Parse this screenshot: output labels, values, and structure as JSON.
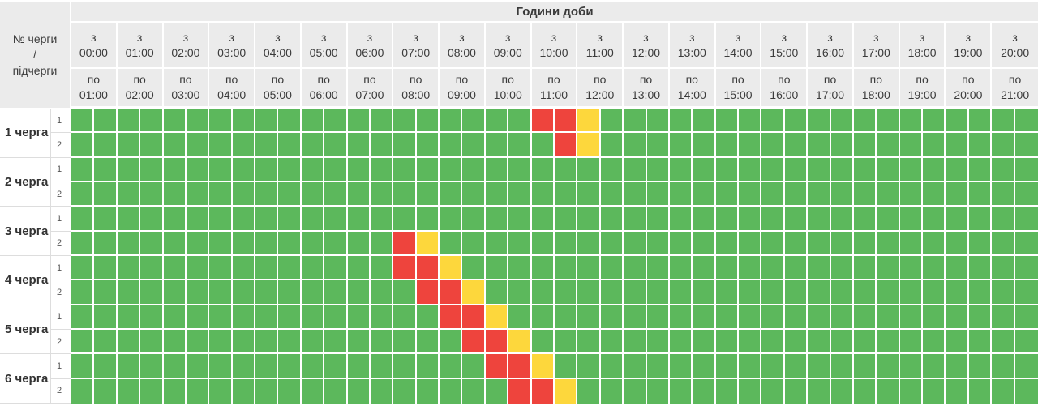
{
  "header": {
    "corner_label": "№ черги\n/\nпідчерги",
    "from_prefix": "з",
    "to_prefix": "по"
  },
  "chart_data": {
    "type": "heatmap",
    "title": "Години доби",
    "row_header": "№ черги / підчерги",
    "cell_minutes": 30,
    "colors": {
      "g": "#5cb85c",
      "r": "#ee443d",
      "y": "#fdd73c"
    },
    "x_slots": [
      {
        "from": "00:00",
        "to": "01:00"
      },
      {
        "from": "01:00",
        "to": "02:00"
      },
      {
        "from": "02:00",
        "to": "03:00"
      },
      {
        "from": "03:00",
        "to": "04:00"
      },
      {
        "from": "04:00",
        "to": "05:00"
      },
      {
        "from": "05:00",
        "to": "06:00"
      },
      {
        "from": "06:00",
        "to": "07:00"
      },
      {
        "from": "07:00",
        "to": "08:00"
      },
      {
        "from": "08:00",
        "to": "09:00"
      },
      {
        "from": "09:00",
        "to": "10:00"
      },
      {
        "from": "10:00",
        "to": "11:00"
      },
      {
        "from": "11:00",
        "to": "12:00"
      },
      {
        "from": "12:00",
        "to": "13:00"
      },
      {
        "from": "13:00",
        "to": "14:00"
      },
      {
        "from": "14:00",
        "to": "15:00"
      },
      {
        "from": "15:00",
        "to": "16:00"
      },
      {
        "from": "16:00",
        "to": "17:00"
      },
      {
        "from": "17:00",
        "to": "18:00"
      },
      {
        "from": "18:00",
        "to": "19:00"
      },
      {
        "from": "19:00",
        "to": "20:00"
      },
      {
        "from": "20:00",
        "to": "21:00"
      }
    ],
    "rows": [
      {
        "queue": "1 черга",
        "subqueue": "1",
        "runs": [
          [
            "g",
            20
          ],
          [
            "r",
            2
          ],
          [
            "y",
            1
          ],
          [
            "g",
            19
          ]
        ]
      },
      {
        "queue": "1 черга",
        "subqueue": "2",
        "runs": [
          [
            "g",
            21
          ],
          [
            "r",
            1
          ],
          [
            "y",
            1
          ],
          [
            "g",
            19
          ]
        ]
      },
      {
        "queue": "2 черга",
        "subqueue": "1",
        "runs": [
          [
            "g",
            42
          ]
        ]
      },
      {
        "queue": "2 черга",
        "subqueue": "2",
        "runs": [
          [
            "g",
            42
          ]
        ]
      },
      {
        "queue": "3 черга",
        "subqueue": "1",
        "runs": [
          [
            "g",
            42
          ]
        ]
      },
      {
        "queue": "3 черга",
        "subqueue": "2",
        "runs": [
          [
            "g",
            14
          ],
          [
            "r",
            1
          ],
          [
            "y",
            1
          ],
          [
            "g",
            26
          ]
        ]
      },
      {
        "queue": "4 черга",
        "subqueue": "1",
        "runs": [
          [
            "g",
            14
          ],
          [
            "r",
            2
          ],
          [
            "y",
            1
          ],
          [
            "g",
            25
          ]
        ]
      },
      {
        "queue": "4 черга",
        "subqueue": "2",
        "runs": [
          [
            "g",
            15
          ],
          [
            "r",
            2
          ],
          [
            "y",
            1
          ],
          [
            "g",
            24
          ]
        ]
      },
      {
        "queue": "5 черга",
        "subqueue": "1",
        "runs": [
          [
            "g",
            16
          ],
          [
            "r",
            2
          ],
          [
            "y",
            1
          ],
          [
            "g",
            23
          ]
        ]
      },
      {
        "queue": "5 черга",
        "subqueue": "2",
        "runs": [
          [
            "g",
            17
          ],
          [
            "r",
            2
          ],
          [
            "y",
            1
          ],
          [
            "g",
            22
          ]
        ]
      },
      {
        "queue": "6 черга",
        "subqueue": "1",
        "runs": [
          [
            "g",
            18
          ],
          [
            "r",
            2
          ],
          [
            "y",
            1
          ],
          [
            "g",
            21
          ]
        ]
      },
      {
        "queue": "6 черга",
        "subqueue": "2",
        "runs": [
          [
            "g",
            19
          ],
          [
            "r",
            2
          ],
          [
            "y",
            1
          ],
          [
            "g",
            20
          ]
        ]
      }
    ]
  }
}
